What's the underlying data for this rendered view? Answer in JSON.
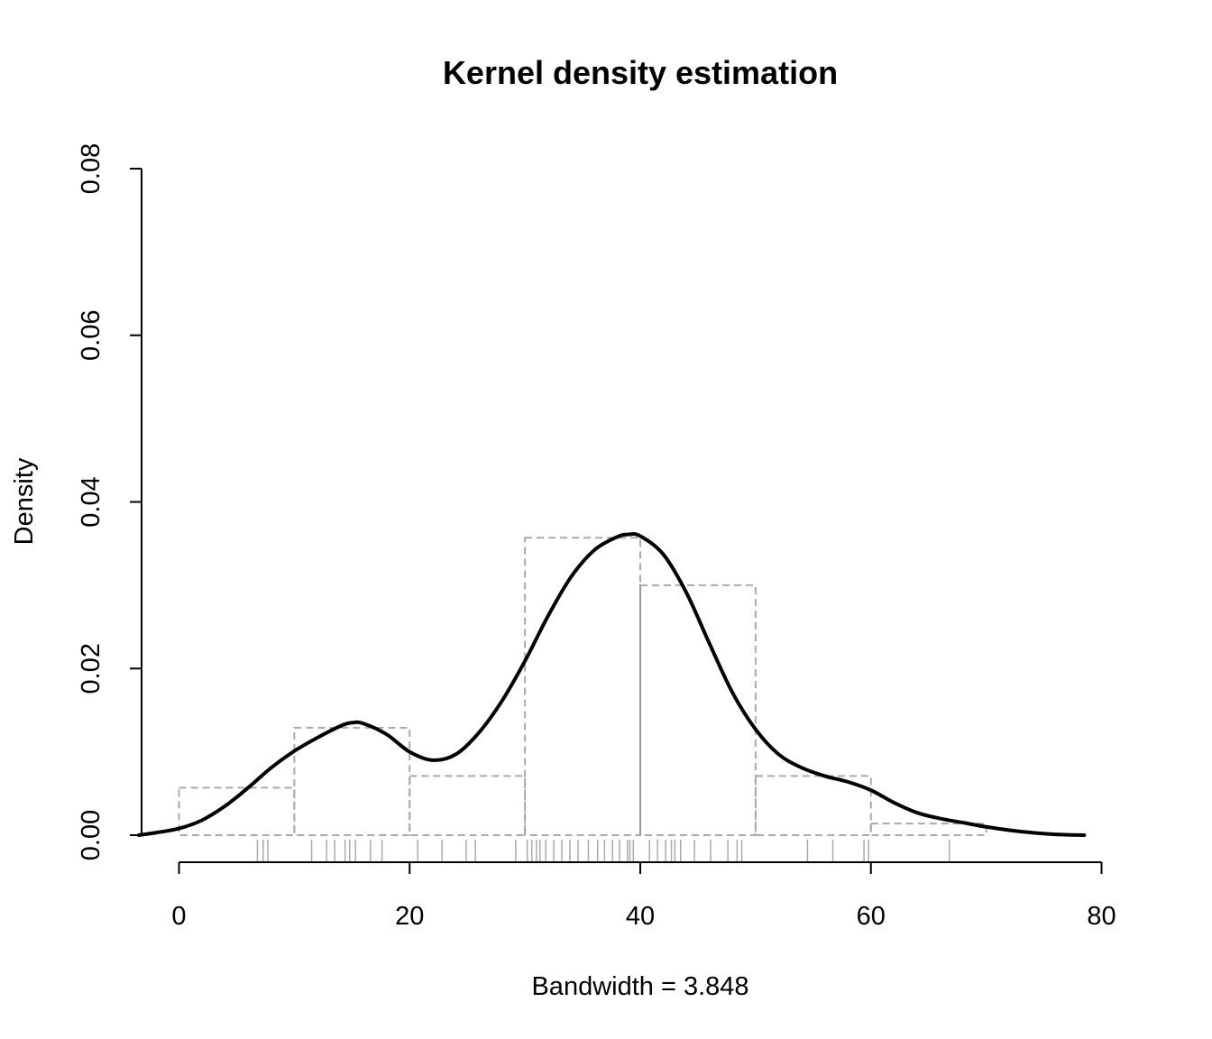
{
  "chart_data": {
    "type": "line",
    "title": "Kernel density estimation",
    "xlabel": "Bandwidth = 3.848",
    "ylabel": "Density",
    "xlim": [
      -3.5,
      81
    ],
    "ylim": [
      0,
      0.08
    ],
    "x_ticks": [
      0,
      20,
      40,
      60,
      80
    ],
    "x_tick_labels": [
      "0",
      "20",
      "40",
      "60",
      "80"
    ],
    "y_ticks": [
      0,
      0.02,
      0.04,
      0.06,
      0.08
    ],
    "y_tick_labels": [
      "0.00",
      "0.02",
      "0.04",
      "0.06",
      "0.08"
    ],
    "grid": false,
    "legend": "none",
    "colors": {
      "density": "#000000",
      "histogram": "#aaaaaa",
      "rug": "#aaaaaa",
      "mean_line": "#999999",
      "axis": "#000000"
    },
    "density": {
      "name": "",
      "x": [
        -3.5,
        -2,
        0,
        2,
        4,
        6,
        8,
        10,
        12,
        14,
        15,
        16,
        18,
        20,
        22,
        24,
        26,
        28,
        30,
        32,
        34,
        36,
        38,
        39,
        40,
        42,
        44,
        46,
        48,
        50,
        52,
        54,
        56,
        58,
        60,
        62,
        64,
        66,
        68,
        70,
        72,
        74,
        76,
        78.5
      ],
      "y": [
        0.0,
        0.0003,
        0.0008,
        0.0018,
        0.0035,
        0.0057,
        0.0081,
        0.0101,
        0.0117,
        0.0131,
        0.0135,
        0.0134,
        0.0121,
        0.01,
        0.009,
        0.0097,
        0.0123,
        0.0161,
        0.0209,
        0.0263,
        0.031,
        0.0342,
        0.0358,
        0.0361,
        0.0359,
        0.0337,
        0.0291,
        0.023,
        0.0171,
        0.0127,
        0.0097,
        0.0081,
        0.0071,
        0.0064,
        0.0054,
        0.0039,
        0.0027,
        0.002,
        0.0015,
        0.001,
        0.0006,
        0.0003,
        0.0001,
        0.0
      ]
    },
    "histogram": {
      "breaks": [
        0,
        10,
        20,
        30,
        40,
        50,
        60,
        70
      ],
      "densities": [
        0.0057,
        0.0129,
        0.0071,
        0.0357,
        0.03,
        0.0071,
        0.0014
      ]
    },
    "mean_line_x": 40,
    "rug": [
      6.8,
      7.3,
      7.7,
      11.5,
      12.8,
      13.5,
      14.4,
      14.8,
      15.3,
      16.6,
      17.6,
      20.7,
      22.8,
      24.9,
      25.7,
      29.2,
      30.2,
      30.6,
      31.0,
      31.3,
      31.8,
      32.5,
      33.2,
      33.9,
      34.6,
      35.5,
      36.3,
      36.9,
      37.6,
      38.2,
      38.9,
      39.1,
      39.4,
      40.8,
      41.5,
      42.2,
      42.7,
      43.0,
      43.5,
      44.7,
      46.1,
      47.6,
      48.4,
      48.8,
      54.5,
      56.7,
      59.4,
      59.8,
      66.8
    ]
  }
}
